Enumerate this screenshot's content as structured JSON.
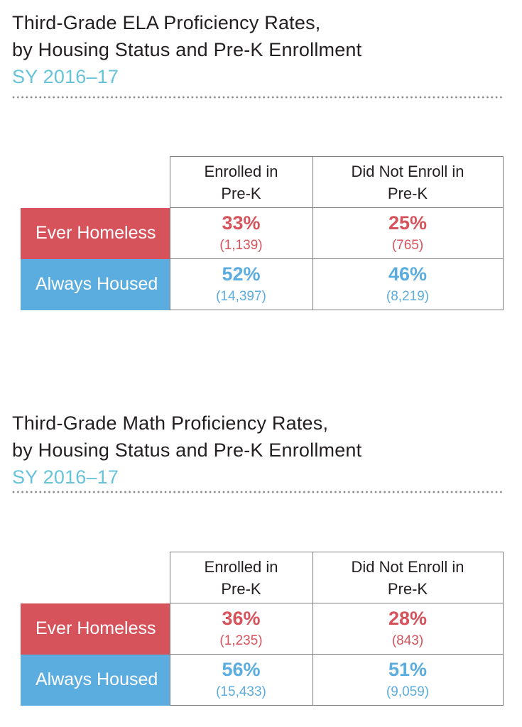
{
  "colors": {
    "accent_red": "#D6535C",
    "accent_blue": "#5BACDF",
    "subtitle_cyan": "#66C3D9",
    "title_text": "#231F20",
    "table_border": "#7F7F7F",
    "divider_dot": "#8A8A8A"
  },
  "sections": [
    {
      "id": "ela",
      "title_line1": "Third-Grade ELA Proficiency Rates,",
      "title_line2": "by Housing Status and Pre-K Enrollment",
      "subtitle": "SY 2016–17",
      "table": {
        "col1_header": "Enrolled in\nPre-K",
        "col2_header": "Did Not Enroll in\nPre-K",
        "rows": [
          {
            "label": "Ever Homeless",
            "cells": [
              {
                "pct": "33%",
                "count": "(1,139)"
              },
              {
                "pct": "25%",
                "count": "(765)"
              }
            ]
          },
          {
            "label": "Always Housed",
            "cells": [
              {
                "pct": "52%",
                "count": "(14,397)"
              },
              {
                "pct": "46%",
                "count": "(8,219)"
              }
            ]
          }
        ]
      }
    },
    {
      "id": "math",
      "title_line1": "Third-Grade Math Proficiency Rates,",
      "title_line2": "by Housing Status and Pre-K Enrollment",
      "subtitle": "SY 2016–17",
      "table": {
        "col1_header": "Enrolled in\nPre-K",
        "col2_header": "Did Not Enroll in\nPre-K",
        "rows": [
          {
            "label": "Ever Homeless",
            "cells": [
              {
                "pct": "36%",
                "count": "(1,235)"
              },
              {
                "pct": "28%",
                "count": "(843)"
              }
            ]
          },
          {
            "label": "Always Housed",
            "cells": [
              {
                "pct": "56%",
                "count": "(15,433)"
              },
              {
                "pct": "51%",
                "count": "(9,059)"
              }
            ]
          }
        ]
      }
    }
  ],
  "chart_data": [
    {
      "type": "table",
      "title": "Third-Grade ELA Proficiency Rates, by Housing Status and Pre-K Enrollment",
      "subtitle": "SY 2016–17",
      "columns": [
        "Enrolled in Pre-K",
        "Did Not Enroll in Pre-K"
      ],
      "rows": [
        {
          "label": "Ever Homeless",
          "proficiency_pct": [
            33,
            25
          ],
          "n": [
            1139,
            765
          ]
        },
        {
          "label": "Always Housed",
          "proficiency_pct": [
            52,
            46
          ],
          "n": [
            14397,
            8219
          ]
        }
      ]
    },
    {
      "type": "table",
      "title": "Third-Grade Math Proficiency Rates, by Housing Status and Pre-K Enrollment",
      "subtitle": "SY 2016–17",
      "columns": [
        "Enrolled in Pre-K",
        "Did Not Enroll in Pre-K"
      ],
      "rows": [
        {
          "label": "Ever Homeless",
          "proficiency_pct": [
            36,
            28
          ],
          "n": [
            1235,
            843
          ]
        },
        {
          "label": "Always Housed",
          "proficiency_pct": [
            56,
            51
          ],
          "n": [
            15433,
            9059
          ]
        }
      ]
    }
  ]
}
